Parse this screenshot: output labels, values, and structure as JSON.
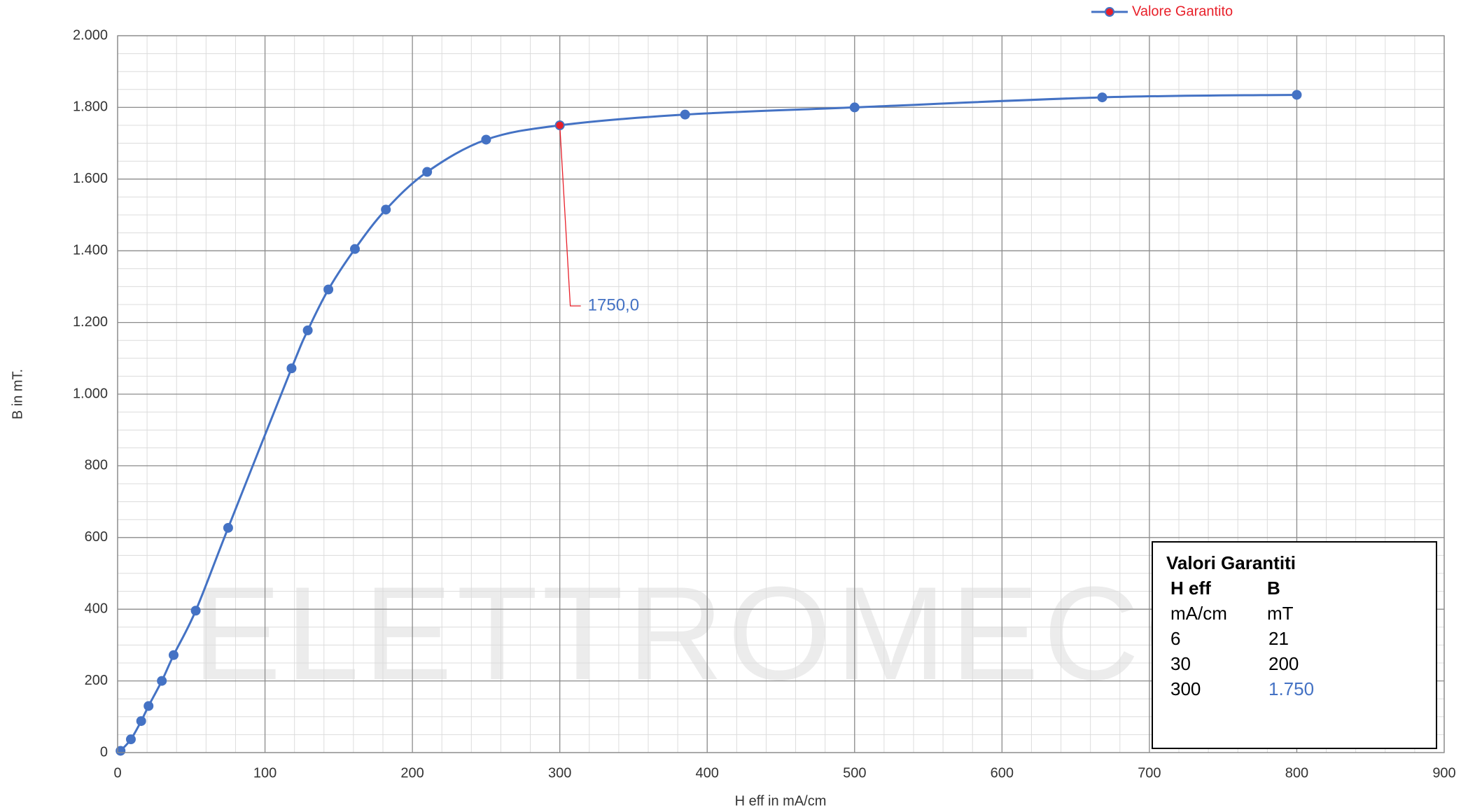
{
  "chart_data": {
    "type": "line",
    "x_label": "H eff   in mA/cm",
    "y_label": "B   in mT.",
    "xlim": [
      0,
      900
    ],
    "ylim": [
      0,
      2000
    ],
    "xticks": [
      0,
      100,
      200,
      300,
      400,
      500,
      600,
      700,
      800,
      900
    ],
    "yticks": [
      0,
      200,
      400,
      600,
      800,
      {
        "value": 1000,
        "label": "1.000"
      },
      {
        "value": 1200,
        "label": "1.200"
      },
      {
        "value": 1400,
        "label": "1.400"
      },
      {
        "value": 1600,
        "label": "1.600"
      },
      {
        "value": 1800,
        "label": "1.800"
      },
      {
        "value": 2000,
        "label": "2.000"
      }
    ],
    "xminor": 20,
    "yminor": 50,
    "grid": true,
    "legend": "top-right",
    "watermark": "ELETTROMECCAN",
    "series": [
      {
        "name": "Valore Garantito",
        "color": "#4472c4",
        "x": [
          2,
          9,
          16,
          21,
          30,
          38,
          53,
          75,
          118,
          129,
          143,
          161,
          182,
          210,
          250,
          300,
          385,
          500,
          668,
          800
        ],
        "values": [
          5,
          37,
          88,
          130,
          200,
          272,
          396,
          627,
          1072,
          1178,
          1292,
          1405,
          1515,
          1620,
          1710,
          1750,
          1780,
          1800,
          1828,
          1835
        ]
      }
    ],
    "annotation": {
      "x": 300,
      "y": 1750,
      "label": "1750,0",
      "color": "#e8202a"
    },
    "table": {
      "title": "Valori Garantiti",
      "header": [
        "H eff",
        "B"
      ],
      "units": [
        "mA/cm",
        "mT"
      ],
      "rows": [
        [
          "6",
          "21"
        ],
        [
          "30",
          "200"
        ],
        [
          "300",
          "1.750"
        ]
      ]
    }
  }
}
